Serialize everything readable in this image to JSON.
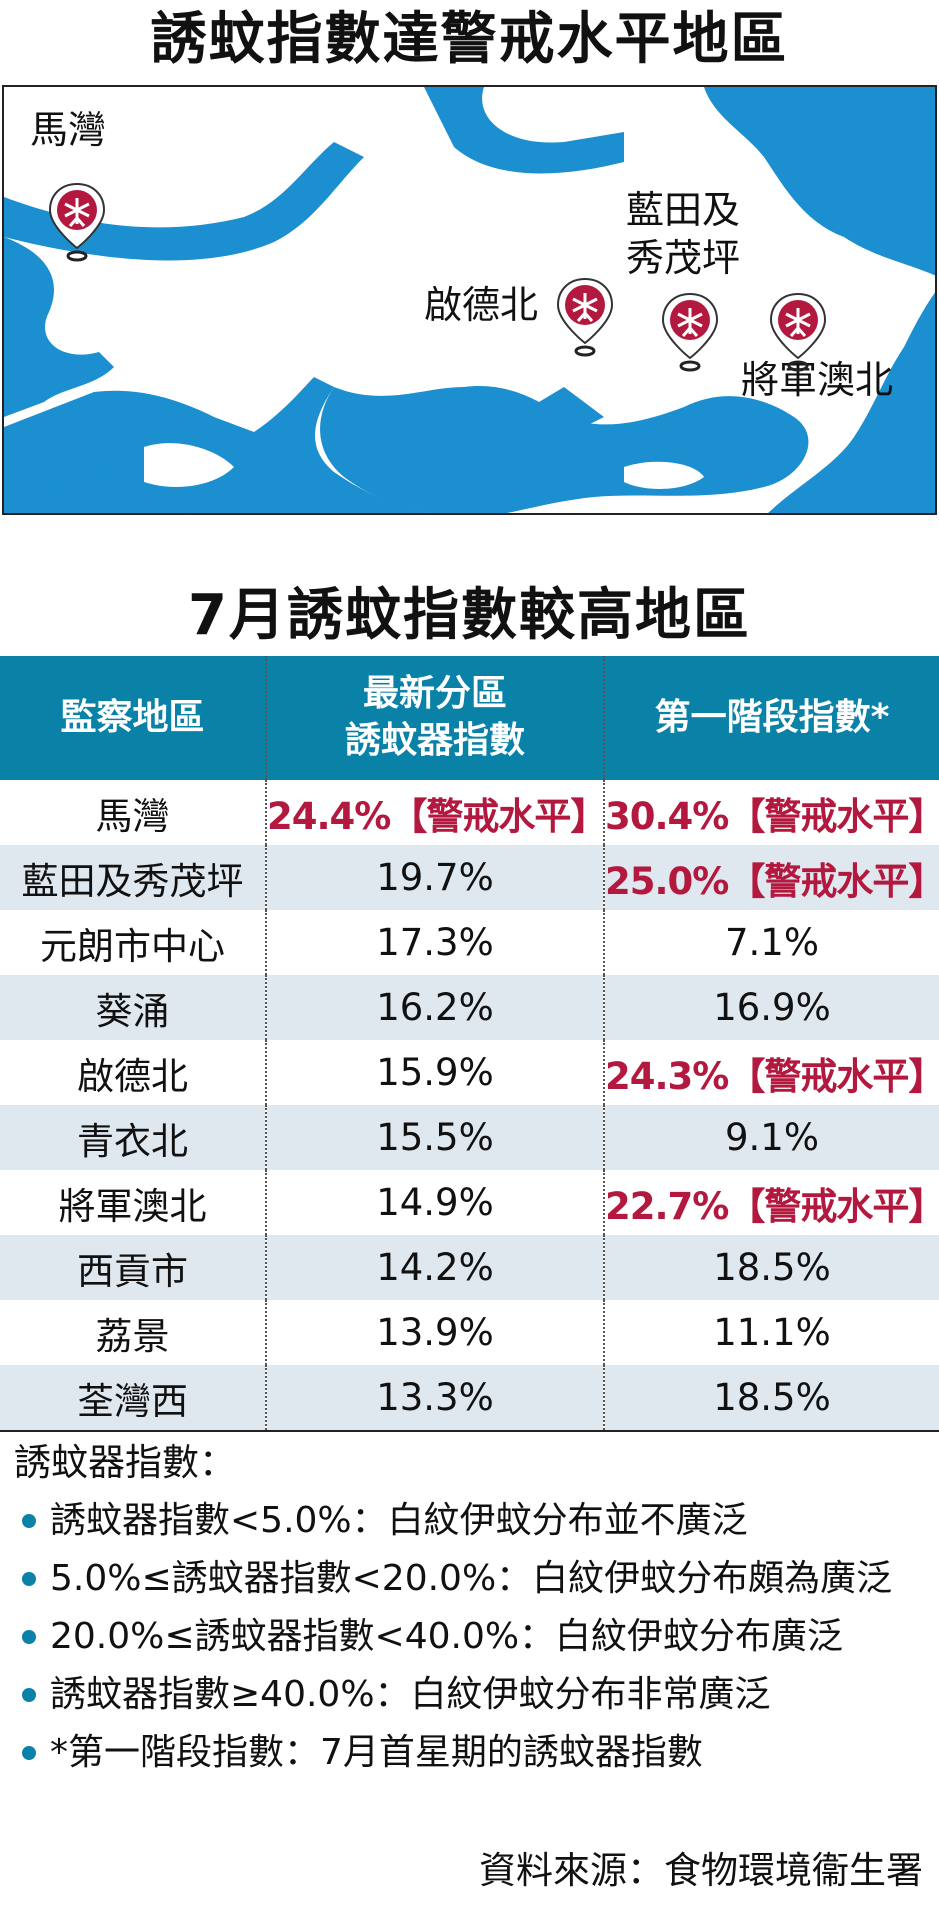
{
  "map_title": "誘蚊指數達警戒水平地區",
  "map_labels": {
    "ma_wan": "馬灣",
    "lam_tin_line1": "藍田及",
    "lam_tin_line2": "秀茂坪",
    "kai_tak_north": "啟德北",
    "tseung_kwan_o_north": "將軍澳北"
  },
  "colors": {
    "water": "#1b8fd0",
    "header": "#0a82a8",
    "alert": "#b3183e",
    "pin": "#b3183e",
    "row_alt": "#dfe7ef"
  },
  "table_title": "7月誘蚊指數較高地區",
  "table": {
    "headers": [
      {
        "line1": "監察地區",
        "line2": ""
      },
      {
        "line1": "最新分區",
        "line2": "誘蚊器指數"
      },
      {
        "line1": "第一階段指數*",
        "line2": ""
      }
    ],
    "rows": [
      {
        "district": "馬灣",
        "latest": "24.4%【警戒水平】",
        "latest_alert": true,
        "stage1": "30.4%【警戒水平】",
        "stage1_alert": true
      },
      {
        "district": "藍田及秀茂坪",
        "latest": "19.7%",
        "latest_alert": false,
        "stage1": "25.0%【警戒水平】",
        "stage1_alert": true
      },
      {
        "district": "元朗市中心",
        "latest": "17.3%",
        "latest_alert": false,
        "stage1": "7.1%",
        "stage1_alert": false
      },
      {
        "district": "葵涌",
        "latest": "16.2%",
        "latest_alert": false,
        "stage1": "16.9%",
        "stage1_alert": false
      },
      {
        "district": "啟德北",
        "latest": "15.9%",
        "latest_alert": false,
        "stage1": "24.3%【警戒水平】",
        "stage1_alert": true
      },
      {
        "district": "青衣北",
        "latest": "15.5%",
        "latest_alert": false,
        "stage1": "9.1%",
        "stage1_alert": false
      },
      {
        "district": "將軍澳北",
        "latest": "14.9%",
        "latest_alert": false,
        "stage1": "22.7%【警戒水平】",
        "stage1_alert": true
      },
      {
        "district": "西貢市",
        "latest": "14.2%",
        "latest_alert": false,
        "stage1": "18.5%",
        "stage1_alert": false
      },
      {
        "district": "荔景",
        "latest": "13.9%",
        "latest_alert": false,
        "stage1": "11.1%",
        "stage1_alert": false
      },
      {
        "district": "荃灣西",
        "latest": "13.3%",
        "latest_alert": false,
        "stage1": "18.5%",
        "stage1_alert": false
      }
    ]
  },
  "notes": {
    "heading": "誘蚊器指數：",
    "items": [
      "誘蚊器指數<5.0%：白紋伊蚊分布並不廣泛",
      "5.0%≤誘蚊器指數<20.0%：白紋伊蚊分布頗為廣泛",
      "20.0%≤誘蚊器指數<40.0%：白紋伊蚊分布廣泛",
      "誘蚊器指數≥40.0%：白紋伊蚊分布非常廣泛",
      "*第一階段指數：7月首星期的誘蚊器指數"
    ]
  },
  "source": "資料來源：食物環境衞生署",
  "pins": [
    {
      "id": "ma-wan",
      "icon": "mosquito-pin-icon"
    },
    {
      "id": "kai-tak-north",
      "icon": "mosquito-pin-icon"
    },
    {
      "id": "lam-tin",
      "icon": "mosquito-pin-icon"
    },
    {
      "id": "tseung-kwan-o-north",
      "icon": "mosquito-pin-icon"
    }
  ]
}
